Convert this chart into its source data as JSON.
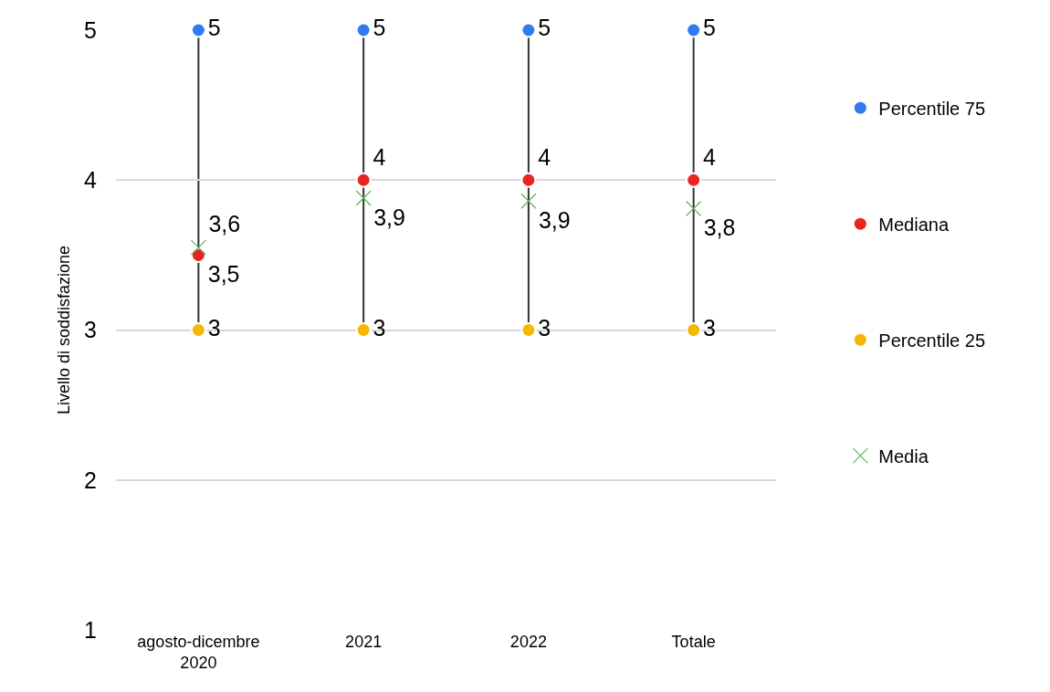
{
  "chart_data": {
    "type": "scatter",
    "ylabel": "Livello di soddisfazione",
    "categories": [
      "agosto-dicembre 2020",
      "2021",
      "2022",
      "Totale"
    ],
    "ylim": [
      1,
      5
    ],
    "yticks": [
      1,
      2,
      3,
      4,
      5
    ],
    "grid": "y",
    "legend": "right",
    "series": [
      {
        "name": "Percentile 75",
        "color": "#2f7bf0",
        "marker": "circle",
        "values": [
          5,
          5,
          5,
          5
        ],
        "value_labels": [
          "5",
          "5",
          "5",
          "5"
        ]
      },
      {
        "name": "Mediana",
        "color": "#e8261f",
        "marker": "circle",
        "values": [
          3.5,
          4,
          4,
          4
        ],
        "value_labels": [
          "3,5",
          "4",
          "4",
          "4"
        ]
      },
      {
        "name": "Percentile 25",
        "color": "#f5b800",
        "marker": "circle",
        "values": [
          3,
          3,
          3,
          3
        ],
        "value_labels": [
          "3",
          "3",
          "3",
          "3"
        ]
      },
      {
        "name": "Media",
        "color": "#5cb85c",
        "marker": "cross",
        "values": [
          3.55,
          3.88,
          3.86,
          3.81
        ],
        "value_labels": [
          "3,6",
          "3,9",
          "3,9",
          "3,8"
        ]
      }
    ]
  }
}
